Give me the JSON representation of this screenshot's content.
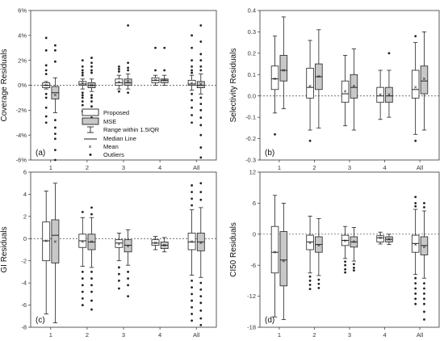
{
  "chart_data": [
    {
      "type": "box",
      "panel_label": "(a)",
      "ylabel": "Coverage Residuals",
      "ylim": [
        -6,
        6
      ],
      "yticks": [
        -6,
        -4,
        -2,
        0,
        2,
        4,
        6
      ],
      "ytick_labels": [
        "-6%",
        "-4%",
        "-2%",
        "0%",
        "2%",
        "4%",
        "6%"
      ],
      "categories": [
        "1",
        "2",
        "3",
        "4",
        "All"
      ],
      "zero_line": true,
      "series": [
        {
          "name": "Proposed",
          "boxes": [
            {
              "q1": -0.2,
              "median": 0.0,
              "q3": 0.2,
              "mean": 0.0,
              "whisker_low": -0.3,
              "whisker_high": 0.3,
              "outliers": [
                3.8,
                2.8,
                1.6,
                1.2,
                0.9,
                -0.7,
                -1.0,
                -1.8,
                -2.5,
                -3.0
              ]
            },
            {
              "q1": 0.0,
              "median": 0.1,
              "q3": 0.3,
              "mean": 0.15,
              "whisker_low": -0.3,
              "whisker_high": 0.5,
              "outliers": [
                2.0,
                1.5,
                1.2,
                1.0,
                0.8,
                -0.6,
                -0.8,
                -1.0,
                -1.3,
                -1.6,
                -2.1
              ]
            },
            {
              "q1": 0.0,
              "median": 0.2,
              "q3": 0.5,
              "mean": 0.25,
              "whisker_low": -0.3,
              "whisker_high": 0.8,
              "outliers": [
                1.5,
                1.3,
                1.1,
                -0.5
              ]
            },
            {
              "q1": 0.2,
              "median": 0.4,
              "q3": 0.6,
              "mean": 0.4,
              "whisker_low": 0.0,
              "whisker_high": 0.8,
              "outliers": [
                3.0,
                1.2
              ]
            },
            {
              "q1": 0.0,
              "median": 0.1,
              "q3": 0.4,
              "mean": 0.15,
              "whisker_low": -0.4,
              "whisker_high": 0.8,
              "outliers": [
                4.0,
                3.0,
                2.0,
                1.5,
                1.2,
                1.0,
                -0.7,
                -1.2,
                -1.8,
                -2.4,
                -3.0
              ]
            }
          ]
        },
        {
          "name": "MSE",
          "boxes": [
            {
              "q1": -1.1,
              "median": -0.6,
              "q3": -0.1,
              "mean": -0.8,
              "whisker_low": -2.2,
              "whisker_high": 0.6,
              "outliers": [
                3.2,
                2.8,
                1.9,
                -2.8,
                -3.4,
                -3.9,
                -4.3,
                -5.2,
                -6.0
              ]
            },
            {
              "q1": -0.2,
              "median": 0.0,
              "q3": 0.2,
              "mean": 0.0,
              "whisker_low": -0.5,
              "whisker_high": 0.5,
              "outliers": [
                2.2,
                1.8,
                1.5,
                1.2,
                1.0,
                -0.8,
                -1.0,
                -1.3,
                -1.7,
                -2.2,
                -2.6,
                -3.0
              ]
            },
            {
              "q1": 0.0,
              "median": 0.2,
              "q3": 0.5,
              "mean": 0.3,
              "whisker_low": -0.3,
              "whisker_high": 0.9,
              "outliers": [
                4.8,
                1.8,
                1.4,
                1.2,
                -0.6
              ]
            },
            {
              "q1": 0.2,
              "median": 0.4,
              "q3": 0.5,
              "mean": 0.4,
              "whisker_low": 0.0,
              "whisker_high": 0.8,
              "outliers": [
                3.0,
                1.2
              ]
            },
            {
              "q1": -0.2,
              "median": 0.0,
              "q3": 0.3,
              "mean": 0.1,
              "whisker_low": -0.7,
              "whisker_high": 0.9,
              "outliers": [
                4.8,
                3.5,
                2.5,
                2.0,
                1.5,
                1.2,
                -1.0,
                -1.5,
                -2.0,
                -2.6,
                -3.2,
                -4.0,
                -5.0,
                -5.8
              ]
            }
          ]
        }
      ]
    },
    {
      "type": "box",
      "panel_label": "(b)",
      "ylabel": "Selectivity Residuals",
      "ylim": [
        -0.3,
        0.4
      ],
      "yticks": [
        -0.3,
        -0.2,
        -0.1,
        0.0,
        0.1,
        0.2,
        0.3,
        0.4
      ],
      "ytick_labels": [
        "-0.3",
        "-0.2",
        "-0.1",
        "0.0",
        "0.1",
        "0.2",
        "0.3",
        "0.4"
      ],
      "categories": [
        "1",
        "2",
        "3",
        "4",
        "All"
      ],
      "zero_line": true,
      "series": [
        {
          "name": "Proposed",
          "boxes": [
            {
              "q1": 0.03,
              "median": 0.08,
              "q3": 0.14,
              "mean": 0.08,
              "whisker_low": -0.08,
              "whisker_high": 0.28,
              "outliers": [
                -0.18
              ]
            },
            {
              "q1": -0.01,
              "median": 0.04,
              "q3": 0.13,
              "mean": 0.045,
              "whisker_low": -0.16,
              "whisker_high": 0.26,
              "outliers": [
                -0.21
              ]
            },
            {
              "q1": -0.03,
              "median": 0.01,
              "q3": 0.07,
              "mean": 0.02,
              "whisker_low": -0.14,
              "whisker_high": 0.19,
              "outliers": []
            },
            {
              "q1": -0.03,
              "median": 0.0,
              "q3": 0.04,
              "mean": 0.005,
              "whisker_low": -0.11,
              "whisker_high": 0.12,
              "outliers": []
            },
            {
              "q1": -0.01,
              "median": 0.03,
              "q3": 0.12,
              "mean": 0.04,
              "whisker_low": -0.18,
              "whisker_high": 0.25,
              "outliers": [
                0.28,
                -0.21
              ]
            }
          ]
        },
        {
          "name": "MSE",
          "boxes": [
            {
              "q1": 0.07,
              "median": 0.12,
              "q3": 0.19,
              "mean": 0.12,
              "whisker_low": -0.06,
              "whisker_high": 0.37,
              "outliers": []
            },
            {
              "q1": 0.03,
              "median": 0.09,
              "q3": 0.15,
              "mean": 0.09,
              "whisker_low": -0.15,
              "whisker_high": 0.31,
              "outliers": []
            },
            {
              "q1": -0.01,
              "median": 0.04,
              "q3": 0.1,
              "mean": 0.045,
              "whisker_low": -0.16,
              "whisker_high": 0.22,
              "outliers": []
            },
            {
              "q1": -0.03,
              "median": 0.0,
              "q3": 0.04,
              "mean": 0.005,
              "whisker_low": -0.1,
              "whisker_high": 0.12,
              "outliers": [
                0.2
              ]
            },
            {
              "q1": 0.01,
              "median": 0.07,
              "q3": 0.14,
              "mean": 0.08,
              "whisker_low": -0.16,
              "whisker_high": 0.3,
              "outliers": []
            }
          ]
        }
      ]
    },
    {
      "type": "box",
      "panel_label": "(c)",
      "ylabel": "GI Residuals",
      "ylim": [
        -8,
        6
      ],
      "yticks": [
        -8,
        -6,
        -4,
        -2,
        0,
        2,
        4,
        6
      ],
      "ytick_labels": [
        "-8",
        "-6",
        "-4",
        "-2",
        "0",
        "2",
        "4",
        "6"
      ],
      "categories": [
        "1",
        "2",
        "3",
        "4",
        "All"
      ],
      "zero_line": true,
      "series": [
        {
          "name": "Proposed",
          "boxes": [
            {
              "q1": -2.0,
              "median": -0.2,
              "q3": 1.5,
              "mean": -0.2,
              "whisker_low": -6.8,
              "whisker_high": 4.3,
              "outliers": []
            },
            {
              "q1": -0.8,
              "median": -0.2,
              "q3": 0.4,
              "mean": -0.3,
              "whisker_low": -2.5,
              "whisker_high": 1.9,
              "outliers": [
                2.4,
                -3.0,
                -3.6,
                -4.2,
                -4.8,
                -5.4,
                -6.0
              ]
            },
            {
              "q1": -0.8,
              "median": -0.4,
              "q3": -0.1,
              "mean": -0.5,
              "whisker_low": -2.0,
              "whisker_high": 0.5,
              "outliers": [
                -2.6,
                -3.2,
                -3.8,
                -4.5
              ]
            },
            {
              "q1": -0.6,
              "median": -0.4,
              "q3": -0.1,
              "mean": -0.4,
              "whisker_low": -1.0,
              "whisker_high": 0.2,
              "outliers": []
            },
            {
              "q1": -1.0,
              "median": -0.3,
              "q3": 0.5,
              "mean": -0.3,
              "whisker_low": -3.3,
              "whisker_high": 2.6,
              "outliers": [
                4.8,
                4.2,
                3.6,
                3.0,
                -3.8,
                -4.4,
                -5.0,
                -5.6,
                -6.2,
                -6.8,
                -7.4
              ]
            }
          ]
        },
        {
          "name": "MSE",
          "boxes": [
            {
              "q1": -2.2,
              "median": 0.3,
              "q3": 1.7,
              "mean": -0.3,
              "whisker_low": -7.6,
              "whisker_high": 5.0,
              "outliers": []
            },
            {
              "q1": -1.0,
              "median": -0.3,
              "q3": 0.4,
              "mean": -0.3,
              "whisker_low": -2.6,
              "whisker_high": 1.9,
              "outliers": [
                2.8,
                2.2,
                -3.0,
                -3.6,
                -4.2,
                -4.8,
                -5.6,
                -6.4
              ]
            },
            {
              "q1": -1.2,
              "median": -0.6,
              "q3": -0.1,
              "mean": -0.7,
              "whisker_low": -2.4,
              "whisker_high": 0.8,
              "outliers": [
                -3.0,
                -3.6,
                -4.2,
                -5.2
              ]
            },
            {
              "q1": -0.9,
              "median": -0.6,
              "q3": -0.3,
              "mean": -0.6,
              "whisker_low": -1.2,
              "whisker_high": 0.1,
              "outliers": []
            },
            {
              "q1": -1.1,
              "median": -0.3,
              "q3": 0.5,
              "mean": -0.4,
              "whisker_low": -3.5,
              "whisker_high": 2.8,
              "outliers": [
                5.0,
                4.2,
                3.5,
                -4.0,
                -4.6,
                -5.2,
                -5.8,
                -6.5,
                -7.2,
                -7.8
              ]
            }
          ]
        }
      ]
    },
    {
      "type": "box",
      "panel_label": "(d)",
      "ylabel": "CI50 Residuals",
      "ylim": [
        -18,
        12
      ],
      "yticks": [
        -18,
        -12,
        -6,
        0,
        6,
        12
      ],
      "ytick_labels": [
        "-18",
        "-12",
        "-6",
        "0",
        "6",
        "12"
      ],
      "categories": [
        "1",
        "2",
        "3",
        "4",
        "All"
      ],
      "zero_line": true,
      "series": [
        {
          "name": "Proposed",
          "boxes": [
            {
              "q1": -7.5,
              "median": -3.5,
              "q3": 1.5,
              "mean": -3.5,
              "whisker_low": -16.0,
              "whisker_high": 7.5,
              "outliers": []
            },
            {
              "q1": -3.0,
              "median": -1.5,
              "q3": -0.2,
              "mean": -1.7,
              "whisker_low": -7.5,
              "whisker_high": 3.5,
              "outliers": [
                -8.2,
                -9.0,
                -9.8,
                -10.6
              ]
            },
            {
              "q1": -2.2,
              "median": -1.2,
              "q3": -0.2,
              "mean": -1.3,
              "whisker_low": -4.7,
              "whisker_high": 1.5,
              "outliers": [
                -5.3,
                -6.0,
                -6.8,
                -7.4
              ]
            },
            {
              "q1": -1.5,
              "median": -0.7,
              "q3": -0.3,
              "mean": -0.8,
              "whisker_low": -1.9,
              "whisker_high": 0.4,
              "outliers": []
            },
            {
              "q1": -3.5,
              "median": -1.8,
              "q3": -0.2,
              "mean": -2.0,
              "whisker_low": -7.8,
              "whisker_high": 4.8,
              "outliers": [
                7.2,
                6.0,
                5.4,
                -8.5,
                -9.5,
                -10.5,
                -11.5,
                -12.5,
                -13.5
              ]
            }
          ]
        },
        {
          "name": "MSE",
          "boxes": [
            {
              "q1": -10.0,
              "median": -5.0,
              "q3": 0.5,
              "mean": -5.2,
              "whisker_low": -16.5,
              "whisker_high": 6.0,
              "outliers": []
            },
            {
              "q1": -3.5,
              "median": -2.0,
              "q3": -0.5,
              "mean": -2.2,
              "whisker_low": -8.0,
              "whisker_high": 3.0,
              "outliers": [
                -8.8,
                -9.6,
                -10.4
              ]
            },
            {
              "q1": -2.5,
              "median": -1.5,
              "q3": -0.5,
              "mean": -1.5,
              "whisker_low": -5.2,
              "whisker_high": 1.3,
              "outliers": [
                -5.8,
                -6.5,
                -7.0
              ]
            },
            {
              "q1": -1.5,
              "median": -1.0,
              "q3": -0.5,
              "mean": -1.0,
              "whisker_low": -2.0,
              "whisker_high": 0.0,
              "outliers": []
            },
            {
              "q1": -4.0,
              "median": -2.2,
              "q3": -0.5,
              "mean": -2.5,
              "whisker_low": -8.5,
              "whisker_high": 4.5,
              "outliers": [
                6.0,
                5.2,
                -9.5,
                -10.5,
                -11.5,
                -12.5,
                -13.5,
                -15.0,
                -16.5
              ]
            }
          ]
        }
      ]
    }
  ],
  "legend": {
    "proposed_label": "Proposed",
    "mse_label": "MSE",
    "range_label": "Range within 1.5IQR",
    "median_label": "Median Line",
    "mean_label": "Mean",
    "outliers_label": "Outliers"
  },
  "colors": {
    "proposed_fill": "#ffffff",
    "mse_fill": "#c8c8c8",
    "stroke": "#222222"
  }
}
